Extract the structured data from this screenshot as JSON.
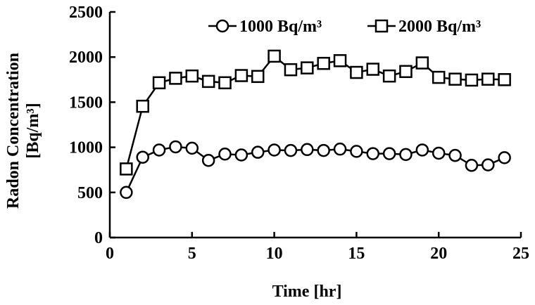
{
  "chart_data": {
    "type": "line",
    "xlabel": "Time [hr]",
    "ylabel_line1": "Radon Concentration",
    "ylabel_line2": "[Bq/m³]",
    "xlim": [
      0,
      25
    ],
    "ylim": [
      0,
      2500
    ],
    "xticks": [
      0,
      5,
      10,
      15,
      20,
      25
    ],
    "yticks": [
      0,
      500,
      1000,
      1500,
      2000,
      2500
    ],
    "grid": false,
    "legend_position": "top-right",
    "x": [
      1,
      2,
      3,
      4,
      5,
      6,
      7,
      8,
      9,
      10,
      11,
      12,
      13,
      14,
      15,
      16,
      17,
      18,
      19,
      20,
      21,
      22,
      23,
      24
    ],
    "series": [
      {
        "name": "1000 Bq/m³",
        "marker": "circle",
        "values": [
          500,
          890,
          970,
          1005,
          990,
          855,
          925,
          915,
          945,
          970,
          965,
          975,
          965,
          980,
          955,
          930,
          930,
          920,
          970,
          935,
          910,
          800,
          805,
          885
        ]
      },
      {
        "name": "2000 Bq/m³",
        "marker": "square",
        "values": [
          760,
          1455,
          1715,
          1765,
          1790,
          1730,
          1715,
          1795,
          1785,
          2010,
          1860,
          1880,
          1930,
          1960,
          1830,
          1865,
          1790,
          1840,
          1935,
          1775,
          1755,
          1745,
          1755,
          1750
        ]
      }
    ]
  }
}
